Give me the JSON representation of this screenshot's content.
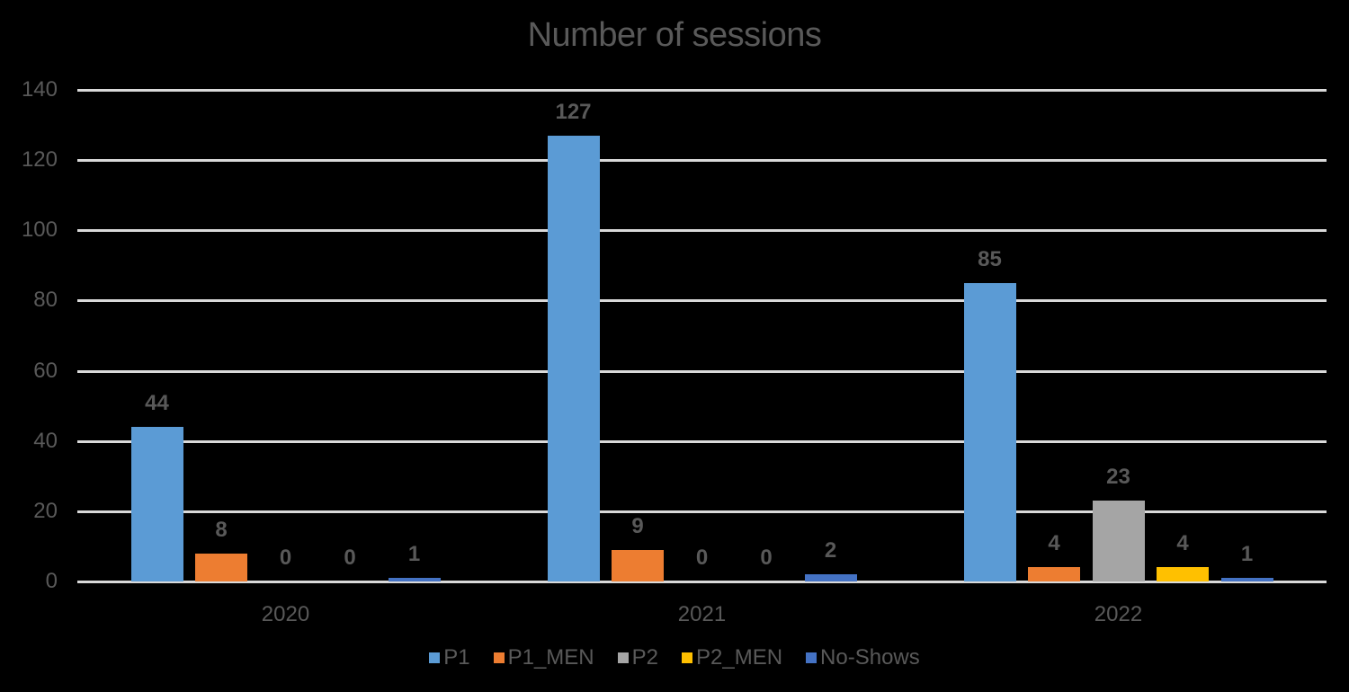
{
  "chart_data": {
    "type": "bar",
    "title": "Number of sessions",
    "xlabel": "",
    "ylabel": "",
    "ylim": [
      0,
      140
    ],
    "yticks": [
      0,
      20,
      40,
      60,
      80,
      100,
      120,
      140
    ],
    "grid": true,
    "legend_position": "bottom",
    "categories": [
      "2020",
      "2021",
      "2022"
    ],
    "series": [
      {
        "name": "P1",
        "color": "#5b9bd5",
        "values": [
          44,
          127,
          85
        ]
      },
      {
        "name": "P1_MEN",
        "color": "#ed7d31",
        "values": [
          8,
          9,
          4
        ]
      },
      {
        "name": "P2",
        "color": "#a5a5a5",
        "values": [
          0,
          0,
          23
        ]
      },
      {
        "name": "P2_MEN",
        "color": "#ffc000",
        "values": [
          0,
          0,
          4
        ]
      },
      {
        "name": "No-Shows",
        "color": "#4472c4",
        "values": [
          1,
          2,
          1
        ]
      }
    ]
  }
}
